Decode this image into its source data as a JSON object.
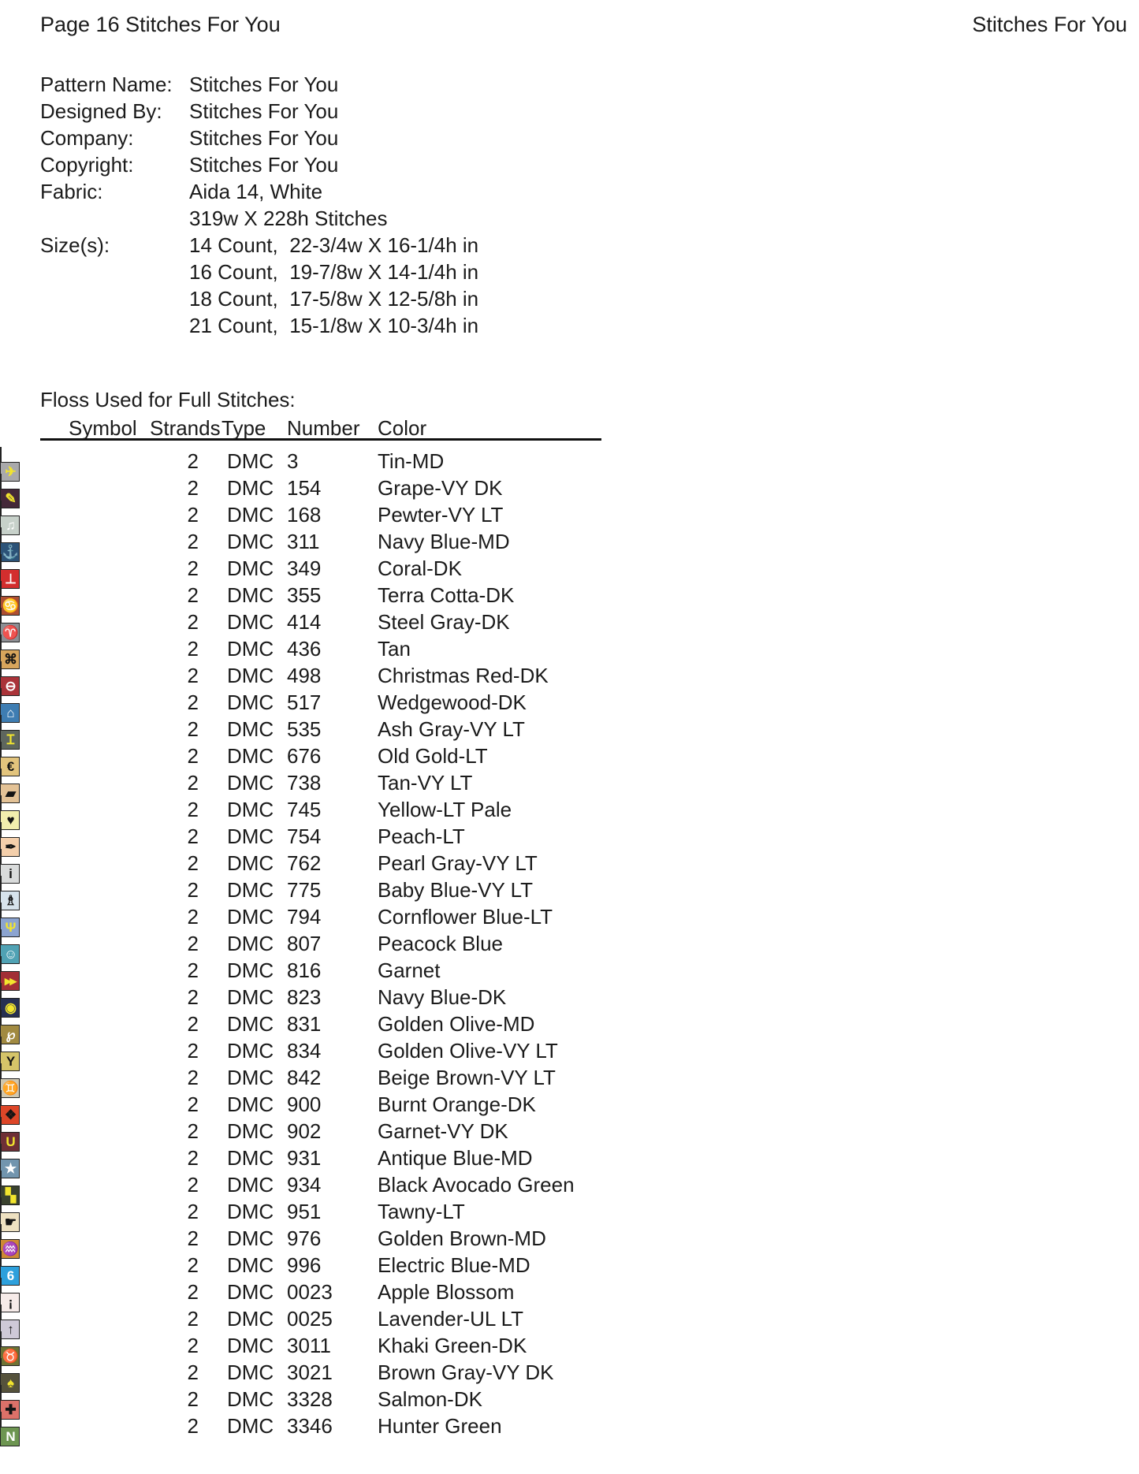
{
  "header": {
    "left": "Page 16  Stitches For You",
    "right": "Stitches For You"
  },
  "pattern_info": {
    "lines": [
      {
        "label": "Pattern Name:",
        "value": "Stitches For You"
      },
      {
        "label": "Designed By:",
        "value": "Stitches For You"
      },
      {
        "label": "Company:",
        "value": "Stitches For You"
      },
      {
        "label": "Copyright:",
        "value": "Stitches For You"
      },
      {
        "label": "Fabric:",
        "value": "Aida 14, White"
      },
      {
        "label": "",
        "value": "319w X 228h Stitches"
      },
      {
        "label": "Size(s):",
        "value": "14 Count,  22-3/4w X 16-1/4h in"
      },
      {
        "label": "",
        "value": "16 Count,  19-7/8w X 14-1/4h in"
      },
      {
        "label": "",
        "value": "18 Count,  17-5/8w X 12-5/8h in"
      },
      {
        "label": "",
        "value": "21 Count,  15-1/8w X 10-3/4h in"
      }
    ]
  },
  "floss": {
    "title": "Floss Used for Full Stitches:",
    "columns": [
      "Symbol",
      "Strands",
      "Type",
      "Number",
      "Color"
    ],
    "accent_symbol_colors": {
      "yellow": "#f2e52e",
      "white": "#ffffff",
      "black": "#141414"
    },
    "rows": [
      {
        "number": "3",
        "color_name": "Tin-MD",
        "strands": "2",
        "type": "DMC",
        "swatch": "#a9a9ab",
        "symbol": {
          "name": "airplane-icon",
          "glyph": "✈",
          "fg": "#f2e52e",
          "bg": "#a9a9ab"
        }
      },
      {
        "number": "154",
        "color_name": "Grape-VY DK",
        "strands": "2",
        "type": "DMC",
        "swatch": "#442839",
        "symbol": {
          "name": "pencil-icon",
          "glyph": "✎",
          "fg": "#f2e52e",
          "bg": "#442839"
        }
      },
      {
        "number": "168",
        "color_name": "Pewter-VY LT",
        "strands": "2",
        "type": "DMC",
        "swatch": "#c7d1ca",
        "symbol": {
          "name": "music-note-icon",
          "glyph": "♫",
          "fg": "#ffffff",
          "bg": "#c7d1ca"
        }
      },
      {
        "number": "311",
        "color_name": "Navy Blue-MD",
        "strands": "2",
        "type": "DMC",
        "swatch": "#2c5378",
        "symbol": {
          "name": "anchor-icon",
          "glyph": "⚓",
          "fg": "#f2e52e",
          "bg": "#2c5378"
        }
      },
      {
        "number": "349",
        "color_name": "Coral-DK",
        "strands": "2",
        "type": "DMC",
        "swatch": "#d32e2e",
        "symbol": {
          "name": "up-tack-icon",
          "glyph": "⊥",
          "fg": "#ffffff",
          "bg": "#d32e2e"
        }
      },
      {
        "number": "355",
        "color_name": "Terra Cotta-DK",
        "strands": "2",
        "type": "DMC",
        "swatch": "#ad4f33",
        "symbol": {
          "name": "cancer-zodiac-icon",
          "glyph": "♋",
          "fg": "#f2e52e",
          "bg": "#ad4f33"
        }
      },
      {
        "number": "414",
        "color_name": "Steel Gray-DK",
        "strands": "2",
        "type": "DMC",
        "swatch": "#8d8f94",
        "symbol": {
          "name": "aries-zodiac-icon",
          "glyph": "♈",
          "fg": "#f2e52e",
          "bg": "#8d8f94"
        }
      },
      {
        "number": "436",
        "color_name": "Tan",
        "strands": "2",
        "type": "DMC",
        "swatch": "#d7a55c",
        "symbol": {
          "name": "command-icon",
          "glyph": "⌘",
          "fg": "#141414",
          "bg": "#d7a55c"
        }
      },
      {
        "number": "498",
        "color_name": "Christmas Red-DK",
        "strands": "2",
        "type": "DMC",
        "swatch": "#aa3339",
        "symbol": {
          "name": "circle-minus-icon",
          "glyph": "⊖",
          "fg": "#ffffff",
          "bg": "#aa3339"
        }
      },
      {
        "number": "517",
        "color_name": "Wedgewood-DK",
        "strands": "2",
        "type": "DMC",
        "swatch": "#3e7db2",
        "symbol": {
          "name": "house-icon",
          "glyph": "⌂",
          "fg": "#ffffff",
          "bg": "#3e7db2"
        }
      },
      {
        "number": "535",
        "color_name": "Ash Gray-VY LT",
        "strands": "2",
        "type": "DMC",
        "swatch": "#5e665e",
        "symbol": {
          "name": "i-beam-icon",
          "glyph": "Ɪ",
          "fg": "#f2e52e",
          "bg": "#5e665e"
        }
      },
      {
        "number": "676",
        "color_name": "Old Gold-LT",
        "strands": "2",
        "type": "DMC",
        "swatch": "#e2c47d",
        "symbol": {
          "name": "euro-icon",
          "glyph": "€",
          "fg": "#141414",
          "bg": "#e2c47d"
        }
      },
      {
        "number": "738",
        "color_name": "Tan-VY LT",
        "strands": "2",
        "type": "DMC",
        "swatch": "#e3c296",
        "symbol": {
          "name": "tag-icon",
          "glyph": "▰",
          "fg": "#141414",
          "bg": "#e3c296"
        }
      },
      {
        "number": "745",
        "color_name": "Yellow-LT Pale",
        "strands": "2",
        "type": "DMC",
        "swatch": "#f2eeae",
        "symbol": {
          "name": "heart-icon",
          "glyph": "♥",
          "fg": "#141414",
          "bg": "#f2eeae"
        }
      },
      {
        "number": "754",
        "color_name": "Peach-LT",
        "strands": "2",
        "type": "DMC",
        "swatch": "#f4cfab",
        "symbol": {
          "name": "pen-icon",
          "glyph": "✒",
          "fg": "#141414",
          "bg": "#f4cfab"
        }
      },
      {
        "number": "762",
        "color_name": "Pearl Gray-VY LT",
        "strands": "2",
        "type": "DMC",
        "swatch": "#d9dbdb",
        "symbol": {
          "name": "letter-i-icon",
          "glyph": "i",
          "fg": "#141414",
          "bg": "#d9dbdb"
        }
      },
      {
        "number": "775",
        "color_name": "Baby Blue-VY LT",
        "strands": "2",
        "type": "DMC",
        "swatch": "#d7e3ec",
        "symbol": {
          "name": "bell-icon",
          "glyph": "♗",
          "fg": "#141414",
          "bg": "#d7e3ec"
        }
      },
      {
        "number": "794",
        "color_name": "Cornflower Blue-LT",
        "strands": "2",
        "type": "DMC",
        "swatch": "#8ca4d0",
        "symbol": {
          "name": "psi-icon",
          "glyph": "Ψ",
          "fg": "#f2e52e",
          "bg": "#8ca4d0"
        }
      },
      {
        "number": "807",
        "color_name": "Peacock Blue",
        "strands": "2",
        "type": "DMC",
        "swatch": "#50a2b4",
        "symbol": {
          "name": "smiley-icon",
          "glyph": "☺",
          "fg": "#ffffff",
          "bg": "#50a2b4"
        }
      },
      {
        "number": "816",
        "color_name": "Garnet",
        "strands": "2",
        "type": "DMC",
        "swatch": "#a22f36",
        "symbol": {
          "name": "fast-forward-icon",
          "glyph": "▸▸",
          "fg": "#f2e52e",
          "bg": "#a22f36"
        }
      },
      {
        "number": "823",
        "color_name": "Navy Blue-DK",
        "strands": "2",
        "type": "DMC",
        "swatch": "#273052",
        "symbol": {
          "name": "eye-icon",
          "glyph": "◉",
          "fg": "#f2e52e",
          "bg": "#273052"
        }
      },
      {
        "number": "831",
        "color_name": "Golden Olive-MD",
        "strands": "2",
        "type": "DMC",
        "swatch": "#a18a41",
        "symbol": {
          "name": "key-icon",
          "glyph": "℘",
          "fg": "#ffffff",
          "bg": "#a18a41"
        }
      },
      {
        "number": "834",
        "color_name": "Golden Olive-VY LT",
        "strands": "2",
        "type": "DMC",
        "swatch": "#d5c469",
        "symbol": {
          "name": "letter-y-icon",
          "glyph": "Y",
          "fg": "#141414",
          "bg": "#d5c469"
        }
      },
      {
        "number": "842",
        "color_name": "Beige Brown-VY LT",
        "strands": "2",
        "type": "DMC",
        "swatch": "#cfc7b0",
        "symbol": {
          "name": "gemini-zodiac-icon",
          "glyph": "♊",
          "fg": "#141414",
          "bg": "#cfc7b0"
        }
      },
      {
        "number": "900",
        "color_name": "Burnt Orange-DK",
        "strands": "2",
        "type": "DMC",
        "swatch": "#dd4628",
        "symbol": {
          "name": "diamonds-icon",
          "glyph": "❖",
          "fg": "#141414",
          "bg": "#dd4628"
        }
      },
      {
        "number": "902",
        "color_name": "Garnet-VY DK",
        "strands": "2",
        "type": "DMC",
        "swatch": "#6e2f36",
        "symbol": {
          "name": "letter-u-icon",
          "glyph": "U",
          "fg": "#f2e52e",
          "bg": "#6e2f36"
        }
      },
      {
        "number": "931",
        "color_name": "Antique Blue-MD",
        "strands": "2",
        "type": "DMC",
        "swatch": "#7295ae",
        "symbol": {
          "name": "star-icon",
          "glyph": "★",
          "fg": "#ffffff",
          "bg": "#7295ae"
        }
      },
      {
        "number": "934",
        "color_name": "Black Avocado Green",
        "strands": "2",
        "type": "DMC",
        "swatch": "#3a422f",
        "symbol": {
          "name": "quadrant-squares-icon",
          "glyph": "▚",
          "fg": "#f2e52e",
          "bg": "#3a422f"
        }
      },
      {
        "number": "951",
        "color_name": "Tawny-LT",
        "strands": "2",
        "type": "DMC",
        "swatch": "#eee1c1",
        "symbol": {
          "name": "hand-icon",
          "glyph": "☛",
          "fg": "#141414",
          "bg": "#eee1c1"
        }
      },
      {
        "number": "976",
        "color_name": "Golden Brown-MD",
        "strands": "2",
        "type": "DMC",
        "swatch": "#cd8a35",
        "symbol": {
          "name": "aquarius-zodiac-icon",
          "glyph": "♒",
          "fg": "#f2e52e",
          "bg": "#cd8a35"
        }
      },
      {
        "number": "996",
        "color_name": "Electric Blue-MD",
        "strands": "2",
        "type": "DMC",
        "swatch": "#2da0dc",
        "symbol": {
          "name": "digit-6-icon",
          "glyph": "6",
          "fg": "#ffffff",
          "bg": "#2da0dc"
        }
      },
      {
        "number": "0023",
        "color_name": "Apple Blossom",
        "strands": "2",
        "type": "DMC",
        "swatch": "#f6ebe9",
        "symbol": {
          "name": "bottle-icon",
          "glyph": "¡",
          "fg": "#141414",
          "bg": "#f6ebe9"
        }
      },
      {
        "number": "0025",
        "color_name": "Lavender-UL LT",
        "strands": "2",
        "type": "DMC",
        "swatch": "#cfc9d7",
        "symbol": {
          "name": "up-arrow-icon",
          "glyph": "↑",
          "fg": "#141414",
          "bg": "#cfc9d7"
        }
      },
      {
        "number": "3011",
        "color_name": "Khaki Green-DK",
        "strands": "2",
        "type": "DMC",
        "swatch": "#6e7335",
        "symbol": {
          "name": "taurus-zodiac-icon",
          "glyph": "♉",
          "fg": "#ffffff",
          "bg": "#6e7335"
        }
      },
      {
        "number": "3021",
        "color_name": "Brown Gray-VY DK",
        "strands": "2",
        "type": "DMC",
        "swatch": "#55523c",
        "symbol": {
          "name": "spade-icon",
          "glyph": "♠",
          "fg": "#f2e52e",
          "bg": "#55523c"
        }
      },
      {
        "number": "3328",
        "color_name": "Salmon-DK",
        "strands": "2",
        "type": "DMC",
        "swatch": "#dc7169",
        "symbol": {
          "name": "cross-icon",
          "glyph": "✚",
          "fg": "#141414",
          "bg": "#dc7169"
        }
      },
      {
        "number": "3346",
        "color_name": "Hunter Green",
        "strands": "2",
        "type": "DMC",
        "swatch": "#6d9551",
        "symbol": {
          "name": "letter-n-icon",
          "glyph": "N",
          "fg": "#ffffff",
          "bg": "#6d9551"
        }
      }
    ]
  }
}
